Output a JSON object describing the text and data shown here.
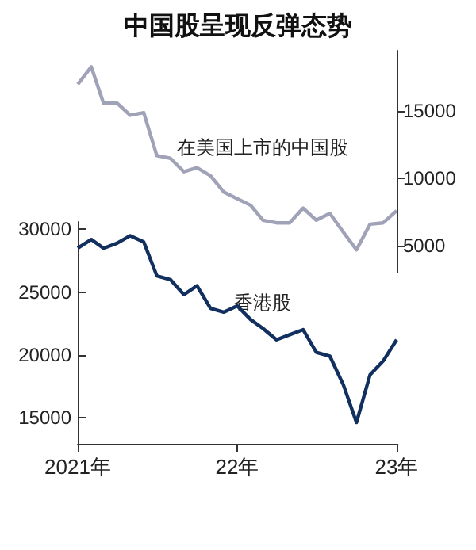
{
  "chart_data": [
    {
      "type": "line",
      "title": "中国股呈现反弹态势",
      "x": [
        "2021-01",
        "2021-02",
        "2021-03",
        "2021-04",
        "2021-05",
        "2021-06",
        "2021-07",
        "2021-08",
        "2021-09",
        "2021-10",
        "2021-11",
        "2021-12",
        "2022-01",
        "2022-02",
        "2022-03",
        "2022-04",
        "2022-05",
        "2022-06",
        "2022-07",
        "2022-08",
        "2022-09",
        "2022-10",
        "2022-11",
        "2022-12",
        "2023-01"
      ],
      "series": [
        {
          "name": "在美国上市的中国股",
          "color": "#a0a3b8",
          "axis": "y2",
          "values": [
            17000,
            18300,
            15600,
            15600,
            14700,
            14900,
            11700,
            11500,
            10500,
            10800,
            10200,
            9000,
            8500,
            8000,
            6900,
            6700,
            6700,
            7800,
            6900,
            7400,
            6000,
            4700,
            6600,
            6700,
            7600
          ]
        }
      ],
      "xlim": [
        "2021-01",
        "2023-01"
      ],
      "y2lim": [
        3000,
        19500
      ],
      "y2ticks": [
        5000,
        10000,
        15000
      ],
      "tick_labels": "y",
      "grid": false,
      "marker": "none",
      "line_style": "solid"
    },
    {
      "type": "line",
      "x": [
        "2021-01",
        "2021-02",
        "2021-03",
        "2021-04",
        "2021-05",
        "2021-06",
        "2021-07",
        "2021-08",
        "2021-09",
        "2021-10",
        "2021-11",
        "2021-12",
        "2022-01",
        "2022-02",
        "2022-03",
        "2022-04",
        "2022-05",
        "2022-06",
        "2022-07",
        "2022-08",
        "2022-09",
        "2022-10",
        "2022-11",
        "2022-12",
        "2023-01"
      ],
      "series": [
        {
          "name": "香港股",
          "color": "#12305f",
          "values": [
            28500,
            29200,
            28500,
            28900,
            29500,
            29000,
            26300,
            26000,
            24800,
            25500,
            23700,
            23400,
            23900,
            22800,
            22100,
            21200,
            21600,
            22000,
            20200,
            19900,
            17600,
            14600,
            18400,
            19500,
            21200
          ]
        }
      ],
      "xlim": [
        "2021-01",
        "2023-01"
      ],
      "xticks": [
        {
          "value": "2021-01",
          "label": "2021年"
        },
        {
          "value": "2022-01",
          "label": "22年"
        },
        {
          "value": "2023-01",
          "label": "23年"
        }
      ],
      "ylim": [
        12900,
        30600
      ],
      "yticks": [
        15000,
        20000,
        25000,
        30000
      ],
      "grid": false,
      "marker": "none",
      "line_style": "solid"
    }
  ]
}
